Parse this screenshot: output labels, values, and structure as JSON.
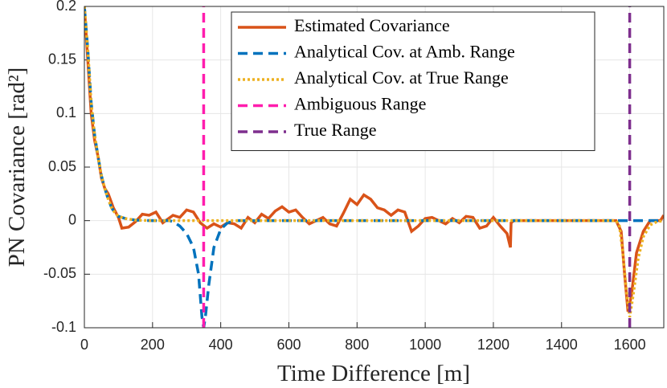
{
  "chart_data": {
    "type": "line",
    "xlabel": "Time Difference [m]",
    "ylabel": "PN Covariance [rad²]",
    "xlim": [
      0,
      1700
    ],
    "ylim": [
      -0.1,
      0.2
    ],
    "xticks": [
      0,
      200,
      400,
      600,
      800,
      1000,
      1200,
      1400,
      1600
    ],
    "yticks": [
      -0.1,
      -0.05,
      0,
      0.05,
      0.1,
      0.15,
      0.2
    ],
    "grid": true,
    "legend_loc": "northeast",
    "series": [
      {
        "name": "Estimated Covariance",
        "color": "#d95319",
        "linestyle": "solid",
        "x": [
          0,
          10,
          20,
          30,
          40,
          50,
          60,
          70,
          85,
          100,
          110,
          130,
          150,
          170,
          190,
          210,
          230,
          260,
          280,
          300,
          320,
          340,
          360,
          380,
          400,
          420,
          440,
          460,
          480,
          500,
          520,
          540,
          560,
          580,
          600,
          620,
          640,
          660,
          680,
          700,
          720,
          740,
          760,
          780,
          800,
          820,
          840,
          860,
          880,
          900,
          920,
          940,
          960,
          980,
          1000,
          1020,
          1040,
          1060,
          1080,
          1100,
          1120,
          1140,
          1160,
          1180,
          1200,
          1220,
          1240,
          1250,
          1252,
          1260,
          1560,
          1575,
          1585,
          1595,
          1605,
          1620,
          1640,
          1660,
          1690,
          1700
        ],
        "values": [
          0.2,
          0.15,
          0.1,
          0.075,
          0.06,
          0.04,
          0.03,
          0.025,
          0.012,
          0.003,
          -0.007,
          -0.006,
          -0.001,
          0.006,
          0.005,
          0.008,
          -0.002,
          0.005,
          0.003,
          0.01,
          0.008,
          -0.002,
          -0.007,
          -0.003,
          -0.006,
          -0.002,
          -0.003,
          -0.007,
          0.003,
          -0.002,
          0.006,
          0.002,
          0.009,
          0.013,
          0.008,
          0.01,
          0.003,
          -0.003,
          0,
          0.003,
          -0.003,
          -0.005,
          0.007,
          0.02,
          0.015,
          0.024,
          0.02,
          0.012,
          0.01,
          0.005,
          0.01,
          0.008,
          -0.01,
          -0.005,
          0.002,
          0.003,
          0,
          -0.003,
          0.002,
          -0.002,
          0.004,
          0.003,
          -0.007,
          -0.005,
          0.003,
          -0.005,
          -0.012,
          -0.025,
          -0.002,
          0,
          0,
          -0.01,
          -0.05,
          -0.085,
          -0.07,
          -0.03,
          -0.01,
          0,
          0,
          0.005
        ]
      },
      {
        "name": "Analytical Cov. at Amb. Range",
        "color": "#0072bd",
        "linestyle": "dashed",
        "x": [
          0,
          10,
          20,
          30,
          40,
          50,
          60,
          70,
          80,
          90,
          100,
          120,
          150,
          200,
          250,
          260,
          280,
          300,
          320,
          335,
          345,
          350,
          355,
          365,
          380,
          400,
          420,
          450,
          1700
        ],
        "values": [
          0.2,
          0.16,
          0.11,
          0.08,
          0.06,
          0.042,
          0.03,
          0.02,
          0.012,
          0.007,
          0.004,
          0.002,
          0.0005,
          0,
          0,
          -0.001,
          -0.005,
          -0.012,
          -0.025,
          -0.05,
          -0.09,
          -0.1,
          -0.09,
          -0.06,
          -0.025,
          -0.008,
          -0.002,
          0,
          0
        ]
      },
      {
        "name": "Analytical Cov. at True Range",
        "color": "#edb120",
        "linestyle": "dotted",
        "x": [
          0,
          10,
          20,
          30,
          40,
          50,
          60,
          70,
          80,
          90,
          100,
          120,
          150,
          200,
          1560,
          1570,
          1580,
          1590,
          1600,
          1610,
          1625,
          1640,
          1660,
          1680,
          1700
        ],
        "values": [
          0.2,
          0.16,
          0.11,
          0.08,
          0.06,
          0.042,
          0.03,
          0.02,
          0.012,
          0.007,
          0.004,
          0.002,
          0.0005,
          0,
          0,
          -0.005,
          -0.03,
          -0.065,
          -0.09,
          -0.07,
          -0.035,
          -0.015,
          -0.004,
          -0.001,
          0
        ]
      },
      {
        "name": "Ambiguous Range",
        "color": "#ff1dad",
        "linestyle": "dashed",
        "x": [
          350,
          350
        ],
        "values": [
          -0.1,
          0.2
        ]
      },
      {
        "name": "True Range",
        "color": "#7e2f8e",
        "linestyle": "dashed",
        "x": [
          1600,
          1600
        ],
        "values": [
          -0.1,
          0.2
        ]
      }
    ]
  }
}
